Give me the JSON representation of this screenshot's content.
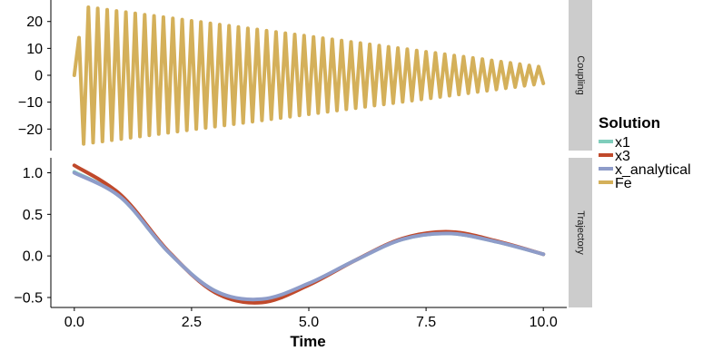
{
  "chart_data": {
    "type": "line",
    "xlabel": "Time",
    "x_ticks": [
      "0.0",
      "2.5",
      "5.0",
      "7.5",
      "10.0"
    ],
    "x_tick_values": [
      0,
      2.5,
      5,
      7.5,
      10
    ],
    "xlim": [
      -0.5,
      10.5
    ],
    "legend": {
      "title": "Solution",
      "position": "right",
      "entries": [
        {
          "label": "x1",
          "color": "#7fcdbb"
        },
        {
          "label": "x3",
          "color": "#c0492b"
        },
        {
          "label": "x_analytical",
          "color": "#8e9cc9"
        },
        {
          "label": "Fe",
          "color": "#d4b05a"
        }
      ]
    },
    "panels": [
      {
        "strip": "Coupling",
        "ylim": [
          -28,
          28
        ],
        "y_ticks": [
          "20",
          "10",
          "0",
          "−10",
          "−20"
        ],
        "y_tick_values": [
          20,
          10,
          0,
          -10,
          -20
        ],
        "series": [
          {
            "name": "Fe",
            "color": "#d4b05a",
            "function": "amplitude decays from about 26 to about 3 oscillating with period about 0.2",
            "x_start": 0,
            "x_end": 10,
            "peaks_sample": [
              [
                0.1,
                14
              ],
              [
                0.3,
                26
              ],
              [
                0.5,
                25
              ],
              [
                2.5,
                18
              ],
              [
                5.0,
                12
              ],
              [
                7.5,
                6
              ],
              [
                10.0,
                3
              ]
            ]
          }
        ]
      },
      {
        "strip": "Trajectory",
        "ylim": [
          -0.62,
          1.18
        ],
        "y_ticks": [
          "1.0",
          "0.5",
          "0.0",
          "−0.5"
        ],
        "y_tick_values": [
          1.0,
          0.5,
          0.0,
          -0.5
        ],
        "series": [
          {
            "name": "x1",
            "color": "#7fcdbb",
            "points": [
              [
                0,
                1.01
              ],
              [
                1,
                0.7
              ],
              [
                2,
                0.05
              ],
              [
                3,
                -0.42
              ],
              [
                4,
                -0.53
              ],
              [
                5,
                -0.34
              ],
              [
                6,
                -0.05
              ],
              [
                7,
                0.2
              ],
              [
                8,
                0.27
              ],
              [
                9,
                0.17
              ],
              [
                10,
                0.02
              ]
            ]
          },
          {
            "name": "x3",
            "color": "#c0492b",
            "points": [
              [
                0,
                1.09
              ],
              [
                1,
                0.73
              ],
              [
                2,
                0.06
              ],
              [
                3,
                -0.44
              ],
              [
                4,
                -0.56
              ],
              [
                5,
                -0.35
              ],
              [
                6,
                -0.05
              ],
              [
                7,
                0.21
              ],
              [
                8,
                0.29
              ],
              [
                9,
                0.18
              ],
              [
                10,
                0.02
              ]
            ]
          },
          {
            "name": "x_analytical",
            "color": "#8e9cc9",
            "points": [
              [
                0,
                1.0
              ],
              [
                1,
                0.7
              ],
              [
                2,
                0.05
              ],
              [
                3,
                -0.42
              ],
              [
                4,
                -0.52
              ],
              [
                5,
                -0.33
              ],
              [
                6,
                -0.05
              ],
              [
                7,
                0.2
              ],
              [
                8,
                0.27
              ],
              [
                9,
                0.17
              ],
              [
                10,
                0.02
              ]
            ]
          }
        ]
      }
    ]
  }
}
